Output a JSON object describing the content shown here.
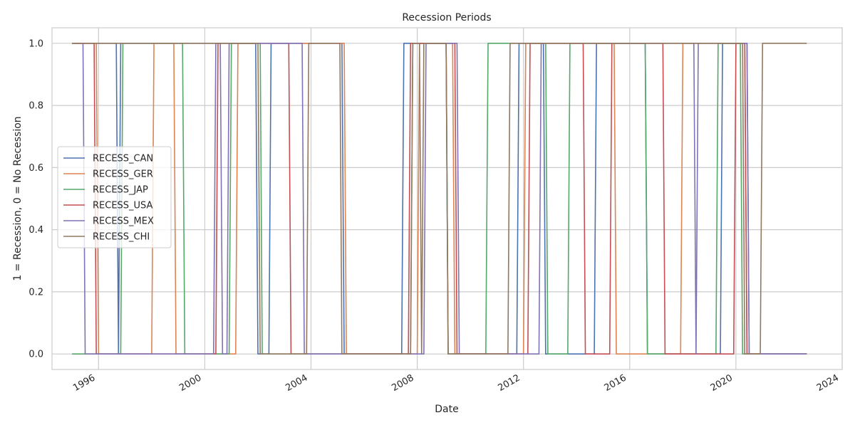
{
  "chart_data": {
    "type": "line",
    "title": "Recession Periods",
    "xlabel": "Date",
    "ylabel": "1 = Recession, 0 = No Recession",
    "xlim": [
      "1994-04-01",
      "2024-01-01"
    ],
    "ylim": [
      -0.05,
      1.05
    ],
    "grid": true,
    "legend_position": "center-left",
    "x_ticks": [
      "1996",
      "2000",
      "2004",
      "2008",
      "2012",
      "2016",
      "2020",
      "2024"
    ],
    "y_ticks": [
      "0.0",
      "0.2",
      "0.4",
      "0.6",
      "0.8",
      "1.0"
    ],
    "series": [
      {
        "name": "RECESS_CAN",
        "color": "#4c72b0",
        "points": [
          [
            "1995-01-01",
            1
          ],
          [
            "1996-09-01",
            1
          ],
          [
            "1996-10-01",
            0
          ],
          [
            "1996-11-01",
            1
          ],
          [
            "2001-12-01",
            1
          ],
          [
            "2002-01-01",
            0
          ],
          [
            "2002-06-01",
            0
          ],
          [
            "2002-07-01",
            1
          ],
          [
            "2005-03-01",
            1
          ],
          [
            "2005-04-01",
            0
          ],
          [
            "2007-06-01",
            0
          ],
          [
            "2007-07-01",
            1
          ],
          [
            "2009-02-01",
            1
          ],
          [
            "2009-03-01",
            0
          ],
          [
            "2011-10-01",
            0
          ],
          [
            "2011-11-01",
            1
          ],
          [
            "2012-10-01",
            1
          ],
          [
            "2012-11-01",
            0
          ],
          [
            "2014-09-01",
            0
          ],
          [
            "2014-10-01",
            1
          ],
          [
            "2016-08-01",
            1
          ],
          [
            "2016-09-01",
            0
          ],
          [
            "2019-06-01",
            0
          ],
          [
            "2019-07-01",
            1
          ],
          [
            "2020-06-01",
            1
          ],
          [
            "2020-07-01",
            0
          ],
          [
            "2022-09-01",
            0
          ]
        ]
      },
      {
        "name": "RECESS_GER",
        "color": "#dd8452",
        "points": [
          [
            "1995-01-01",
            1
          ],
          [
            "1995-12-01",
            1
          ],
          [
            "1996-01-01",
            0
          ],
          [
            "1998-01-01",
            0
          ],
          [
            "1998-02-01",
            1
          ],
          [
            "1998-11-01",
            1
          ],
          [
            "1998-12-01",
            0
          ],
          [
            "2001-03-01",
            0
          ],
          [
            "2001-04-01",
            1
          ],
          [
            "2005-04-01",
            1
          ],
          [
            "2005-05-01",
            0
          ],
          [
            "2008-01-01",
            0
          ],
          [
            "2008-02-01",
            1
          ],
          [
            "2009-05-01",
            1
          ],
          [
            "2009-06-01",
            0
          ],
          [
            "2012-01-01",
            0
          ],
          [
            "2012-02-01",
            1
          ],
          [
            "2015-06-01",
            1
          ],
          [
            "2015-07-01",
            0
          ],
          [
            "2017-12-01",
            0
          ],
          [
            "2018-01-01",
            1
          ],
          [
            "2020-05-01",
            1
          ],
          [
            "2020-06-01",
            0
          ],
          [
            "2022-09-01",
            0
          ]
        ]
      },
      {
        "name": "RECESS_JAP",
        "color": "#55a868",
        "points": [
          [
            "1995-01-01",
            0
          ],
          [
            "1996-11-01",
            0
          ],
          [
            "1996-12-01",
            1
          ],
          [
            "1999-03-01",
            1
          ],
          [
            "1999-04-01",
            0
          ],
          [
            "2000-12-01",
            0
          ],
          [
            "2001-01-01",
            1
          ],
          [
            "2002-02-01",
            1
          ],
          [
            "2002-03-01",
            0
          ],
          [
            "2007-10-01",
            0
          ],
          [
            "2007-11-01",
            1
          ],
          [
            "2009-02-01",
            1
          ],
          [
            "2009-03-01",
            0
          ],
          [
            "2010-08-01",
            0
          ],
          [
            "2010-09-01",
            1
          ],
          [
            "2012-11-01",
            1
          ],
          [
            "2012-12-01",
            0
          ],
          [
            "2013-09-01",
            0
          ],
          [
            "2013-10-01",
            1
          ],
          [
            "2016-08-01",
            1
          ],
          [
            "2016-09-01",
            0
          ],
          [
            "2019-04-01",
            0
          ],
          [
            "2019-05-01",
            1
          ],
          [
            "2020-03-01",
            1
          ],
          [
            "2020-04-01",
            0
          ],
          [
            "2022-09-01",
            0
          ]
        ]
      },
      {
        "name": "RECESS_USA",
        "color": "#c44e52",
        "points": [
          [
            "1995-01-01",
            1
          ],
          [
            "1995-11-01",
            1
          ],
          [
            "1995-12-01",
            0
          ],
          [
            "2000-06-01",
            0
          ],
          [
            "2000-07-01",
            1
          ],
          [
            "2003-03-01",
            1
          ],
          [
            "2003-04-01",
            0
          ],
          [
            "2007-09-01",
            0
          ],
          [
            "2007-10-01",
            1
          ],
          [
            "2009-06-01",
            1
          ],
          [
            "2009-07-01",
            0
          ],
          [
            "2012-03-01",
            0
          ],
          [
            "2012-04-01",
            1
          ],
          [
            "2014-04-01",
            1
          ],
          [
            "2014-05-01",
            0
          ],
          [
            "2015-04-01",
            0
          ],
          [
            "2015-05-01",
            1
          ],
          [
            "2017-04-01",
            1
          ],
          [
            "2017-05-01",
            0
          ],
          [
            "2019-12-01",
            0
          ],
          [
            "2020-01-01",
            1
          ],
          [
            "2020-05-01",
            1
          ],
          [
            "2020-06-01",
            0
          ],
          [
            "2022-09-01",
            0
          ]
        ]
      },
      {
        "name": "RECESS_MEX",
        "color": "#8172b3",
        "points": [
          [
            "1995-01-01",
            1
          ],
          [
            "1995-06-01",
            1
          ],
          [
            "1995-07-01",
            0
          ],
          [
            "2000-05-01",
            0
          ],
          [
            "2000-06-01",
            1
          ],
          [
            "2000-08-01",
            1
          ],
          [
            "2000-09-01",
            0
          ],
          [
            "2000-11-01",
            0
          ],
          [
            "2000-12-01",
            1
          ],
          [
            "2003-09-01",
            1
          ],
          [
            "2003-10-01",
            0
          ],
          [
            "2008-04-01",
            0
          ],
          [
            "2008-05-01",
            1
          ],
          [
            "2009-07-01",
            1
          ],
          [
            "2009-08-01",
            0
          ],
          [
            "2012-08-01",
            0
          ],
          [
            "2012-09-01",
            1
          ],
          [
            "2018-06-01",
            1
          ],
          [
            "2018-07-01",
            0
          ],
          [
            "2018-08-01",
            1
          ],
          [
            "2020-06-01",
            1
          ],
          [
            "2020-07-01",
            0
          ],
          [
            "2022-09-01",
            0
          ]
        ]
      },
      {
        "name": "RECESS_CHI",
        "color": "#937860",
        "points": [
          [
            "1995-01-01",
            1
          ],
          [
            "2002-01-01",
            1
          ],
          [
            "2002-02-01",
            0
          ],
          [
            "2003-11-01",
            0
          ],
          [
            "2003-12-01",
            1
          ],
          [
            "2005-02-01",
            1
          ],
          [
            "2005-03-01",
            0
          ],
          [
            "2007-10-01",
            0
          ],
          [
            "2007-11-01",
            1
          ],
          [
            "2008-02-01",
            1
          ],
          [
            "2008-03-01",
            0
          ],
          [
            "2008-04-01",
            1
          ],
          [
            "2009-02-01",
            1
          ],
          [
            "2009-03-01",
            0
          ],
          [
            "2011-06-01",
            0
          ],
          [
            "2011-07-01",
            1
          ],
          [
            "2020-04-01",
            1
          ],
          [
            "2020-05-01",
            0
          ],
          [
            "2020-12-01",
            0
          ],
          [
            "2021-01-01",
            1
          ],
          [
            "2022-09-01",
            1
          ]
        ]
      }
    ]
  }
}
